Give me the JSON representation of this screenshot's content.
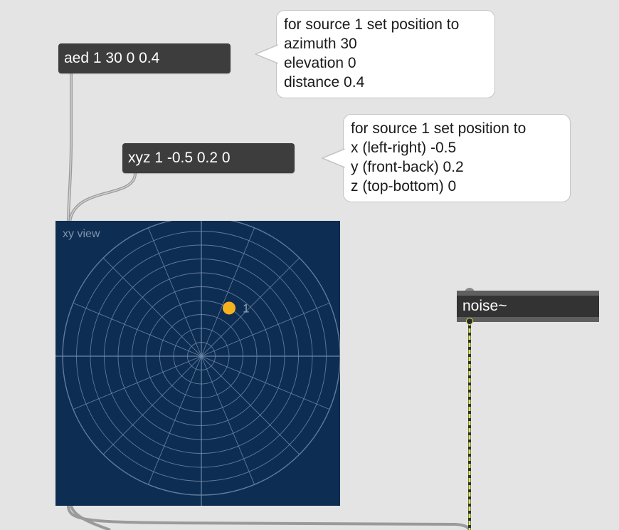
{
  "messages": {
    "aed": "aed 1 30 0 0.4",
    "xyz": "xyz 1 -0.5 0.2 0"
  },
  "comments": {
    "aed": [
      "for source 1 set position to",
      "azimuth 30",
      "elevation 0",
      "distance 0.4"
    ],
    "xyz": [
      "for source 1 set position to",
      "x (left-right) -0.5",
      "y (front-back) 0.2",
      "z (top-bottom) 0"
    ]
  },
  "view": {
    "label": "xy view",
    "source": {
      "id": "1",
      "azimuth": 30,
      "distance": 0.4,
      "color": "#f5b21e"
    },
    "colors": {
      "background": "#0e2d52",
      "grid": "#6e88a8"
    }
  },
  "noise": {
    "label": "noise~"
  },
  "colors": {
    "canvas": "#e4e4e4",
    "message_box": "#3d3d3d",
    "signal_cord": "#d6e45c",
    "control_cord": "#9a9a9a"
  }
}
